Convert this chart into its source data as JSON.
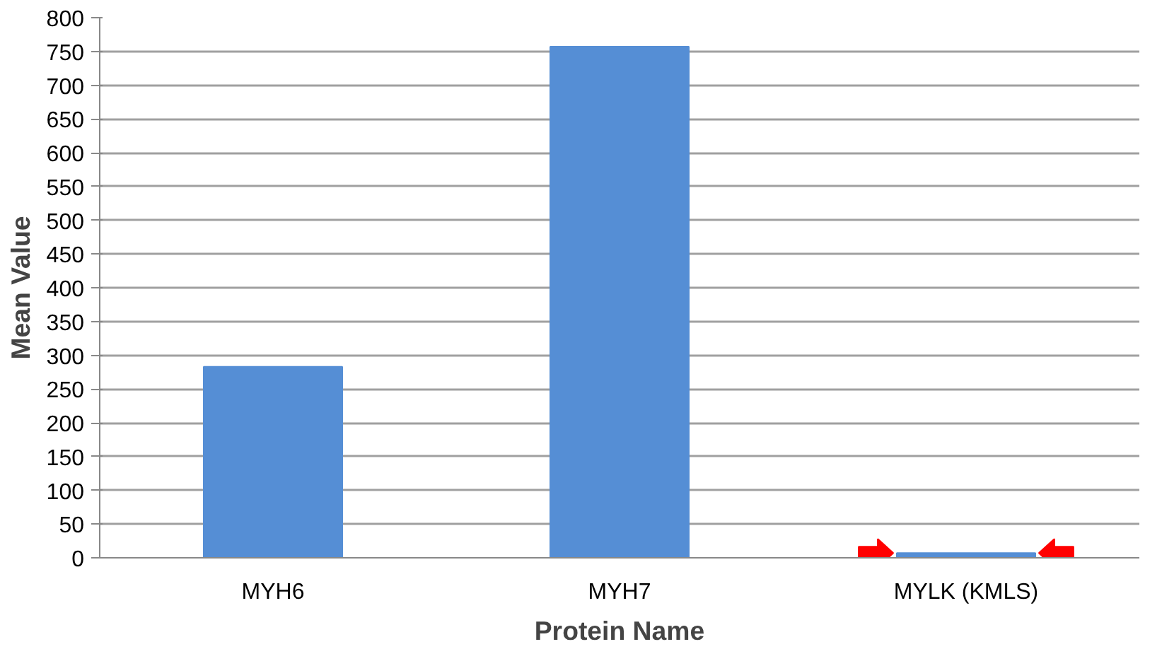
{
  "chart_data": {
    "type": "bar",
    "xlabel": "Protein Name",
    "ylabel": "Mean Value",
    "categories": [
      "MYH6",
      "MYH7",
      "MYLK (KMLS)"
    ],
    "values": [
      283,
      757,
      7
    ],
    "color": "#558ed5",
    "ylim": [
      0,
      800
    ],
    "yticks": [
      0,
      50,
      100,
      150,
      200,
      250,
      300,
      350,
      400,
      450,
      500,
      550,
      600,
      650,
      700,
      750,
      800
    ],
    "grid": "y"
  }
}
